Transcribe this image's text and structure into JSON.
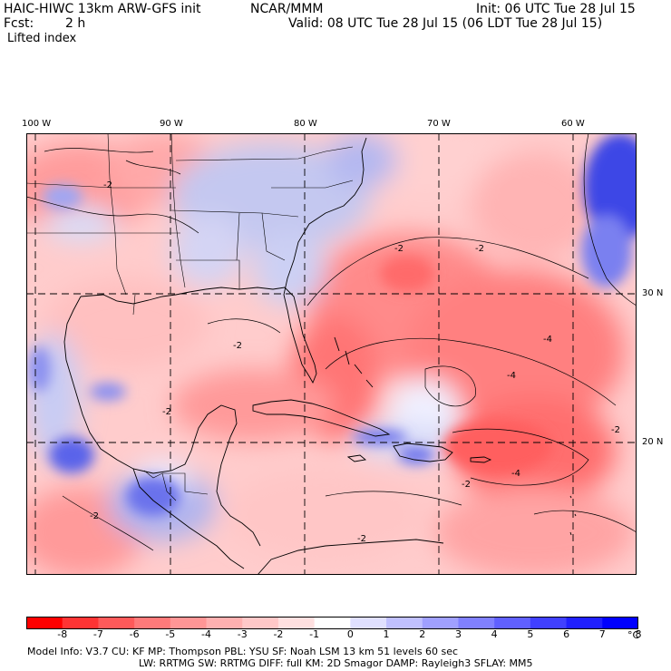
{
  "header": {
    "model": "HAIC-HIWC 13km ARW-GFS init",
    "org": "NCAR/MMM",
    "init": "Init: 06 UTC Tue 28 Jul 15",
    "fcst_label": "Fcst:",
    "fcst_value": "2 h",
    "valid": "Valid: 08 UTC Tue 28 Jul 15 (06 LDT Tue 28 Jul 15)",
    "field": "Lifted index"
  },
  "map": {
    "lon_labels": [
      "100 W",
      "90 W",
      "80 W",
      "70 W",
      "60 W"
    ],
    "lat_labels": [
      "30 N",
      "20 N"
    ],
    "contour_labels": [
      "-2",
      "-4"
    ]
  },
  "colorbar": {
    "ticks": [
      "-8",
      "-7",
      "-6",
      "-5",
      "-4",
      "-3",
      "-2",
      "-1",
      "0",
      "1",
      "2",
      "3",
      "4",
      "5",
      "6",
      "7",
      "8"
    ],
    "unit": "°C",
    "colors": [
      "#ff0000",
      "#ff3434",
      "#ff5a5a",
      "#ff7a7a",
      "#ff9696",
      "#ffb0b0",
      "#ffc8c8",
      "#ffe0e0",
      "#ffffff",
      "#e0e0ff",
      "#c0c0ff",
      "#a0a0ff",
      "#8080ff",
      "#6060ff",
      "#4040ff",
      "#2020ff",
      "#0000ff"
    ]
  },
  "footer": {
    "line1": "Model Info: V3.7      CU: KF       MP: Thompson      PBL: YSU        SF: Noah LSM      13 km    51 levels   60 sec",
    "line2": "LW: RRTMG     SW: RRTMG   DIFF: full    KM: 2D Smagor  DAMP: Rayleigh3   SFLAY: MM5"
  }
}
